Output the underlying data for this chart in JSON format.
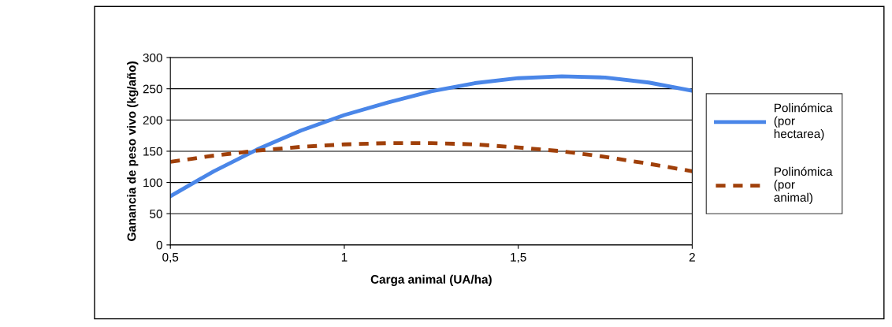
{
  "chart_data": {
    "type": "line",
    "xlabel": "Carga animal (UA/ha)",
    "ylabel": "Ganancia de peso vivo (kg/año)",
    "xlim": [
      0.5,
      2
    ],
    "xticks": [
      {
        "value": 0.5,
        "label": "0,5"
      },
      1,
      {
        "value": 1.5,
        "label": "1,5"
      },
      2
    ],
    "ylim": [
      0,
      300
    ],
    "yticks": [
      0,
      50,
      100,
      150,
      200,
      250,
      300
    ],
    "grid": "y",
    "legend": "right",
    "marker": "none",
    "series": [
      {
        "name": "Polinómica\n(por\nhectarea)",
        "color": "#4a86e8",
        "line_style": "solid",
        "x": [
          0.5,
          0.625,
          0.75,
          0.875,
          1,
          1.125,
          1.25,
          1.375,
          1.5,
          1.625,
          1.75,
          1.875,
          2
        ],
        "values": [
          78,
          118,
          153,
          183,
          208,
          228,
          246,
          259,
          267,
          270,
          268,
          260,
          247
        ]
      },
      {
        "name": "Polinómica\n(por\nanimal)",
        "color": "#a0400a",
        "line_style": "dashed",
        "x": [
          0.5,
          0.625,
          0.75,
          0.875,
          1,
          1.125,
          1.25,
          1.375,
          1.5,
          1.625,
          1.75,
          1.875,
          2
        ],
        "values": [
          133,
          143,
          151,
          157,
          161,
          163,
          163,
          161,
          156,
          150,
          141,
          130,
          118
        ]
      }
    ]
  }
}
